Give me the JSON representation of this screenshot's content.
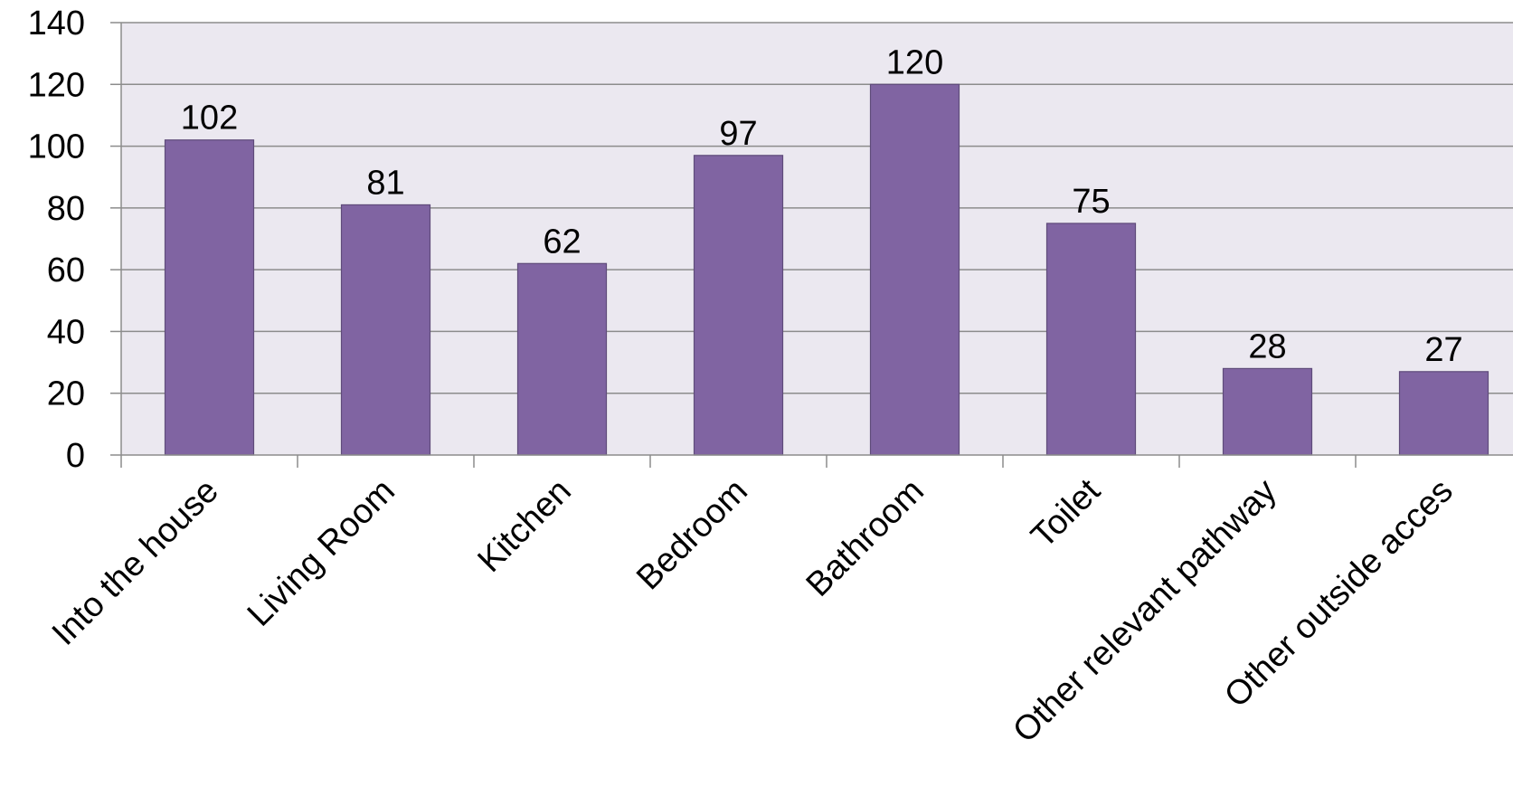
{
  "chart_data": {
    "type": "bar",
    "categories": [
      "Into the house",
      "Living Room",
      "Kitchen",
      "Bedroom",
      "Bathroom",
      "Toilet",
      "Other relevant pathway",
      "Other outside acces"
    ],
    "values": [
      102,
      81,
      62,
      97,
      120,
      75,
      28,
      27
    ],
    "data_labels": [
      "102",
      "81",
      "62",
      "97",
      "120",
      "75",
      "28",
      "27"
    ],
    "y_ticks": [
      "0",
      "20",
      "40",
      "60",
      "80",
      "100",
      "120",
      "140"
    ],
    "ylim": [
      0,
      140
    ],
    "grid": true,
    "bar_color": "#8064a2",
    "plot_background": "#ebe8f0",
    "gridline_color": "#8c8c8c"
  }
}
